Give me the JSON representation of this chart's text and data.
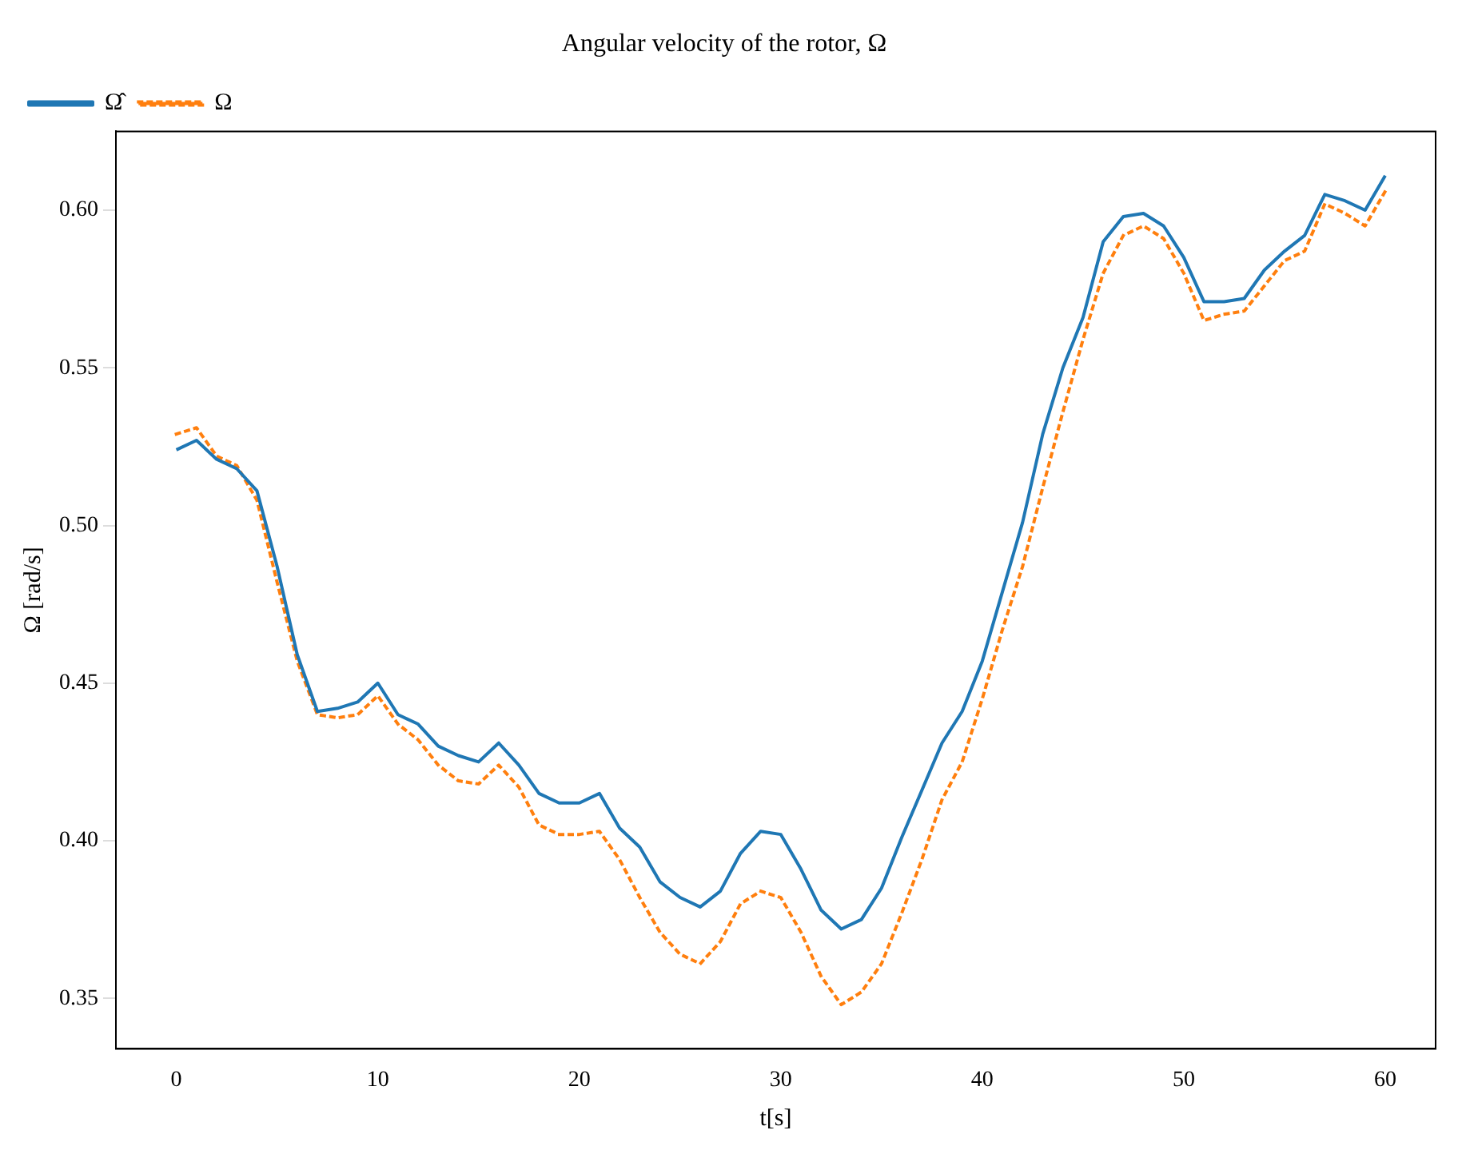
{
  "chart_data": {
    "type": "line",
    "title": "Angular velocity of the rotor, Ω",
    "xlabel": "t[s]",
    "ylabel": "Ω [rad/s]",
    "x": [
      0,
      1,
      2,
      3,
      4,
      5,
      6,
      7,
      8,
      9,
      10,
      11,
      12,
      13,
      14,
      15,
      16,
      17,
      18,
      19,
      20,
      21,
      22,
      23,
      24,
      25,
      26,
      27,
      28,
      29,
      30,
      31,
      32,
      33,
      34,
      35,
      36,
      37,
      38,
      39,
      40,
      41,
      42,
      43,
      44,
      45,
      46,
      47,
      48,
      49,
      50,
      51,
      52,
      53,
      54,
      55,
      56,
      57,
      58,
      59,
      60
    ],
    "series": [
      {
        "name": "Ω̂",
        "color": "#1f77b4",
        "line_style": "solid",
        "values": [
          0.524,
          0.527,
          0.521,
          0.518,
          0.511,
          0.487,
          0.459,
          0.441,
          0.442,
          0.444,
          0.45,
          0.44,
          0.437,
          0.43,
          0.427,
          0.425,
          0.431,
          0.424,
          0.415,
          0.412,
          0.412,
          0.415,
          0.404,
          0.398,
          0.387,
          0.382,
          0.379,
          0.384,
          0.396,
          0.403,
          0.402,
          0.391,
          0.378,
          0.372,
          0.375,
          0.385,
          0.401,
          0.416,
          0.431,
          0.441,
          0.457,
          0.479,
          0.501,
          0.529,
          0.55,
          0.566,
          0.59,
          0.598,
          0.599,
          0.595,
          0.585,
          0.571,
          0.571,
          0.572,
          0.581,
          0.587,
          0.592,
          0.605,
          0.603,
          0.6,
          0.611
        ]
      },
      {
        "name": "Ω",
        "color": "#ff7f0e",
        "line_style": "dotted",
        "values": [
          0.529,
          0.531,
          0.522,
          0.519,
          0.508,
          0.482,
          0.457,
          0.44,
          0.439,
          0.44,
          0.446,
          0.437,
          0.432,
          0.424,
          0.419,
          0.418,
          0.424,
          0.417,
          0.405,
          0.402,
          0.402,
          0.403,
          0.394,
          0.382,
          0.371,
          0.364,
          0.361,
          0.368,
          0.38,
          0.384,
          0.382,
          0.371,
          0.357,
          0.348,
          0.352,
          0.361,
          0.377,
          0.394,
          0.413,
          0.425,
          0.445,
          0.467,
          0.487,
          0.512,
          0.536,
          0.559,
          0.58,
          0.592,
          0.595,
          0.591,
          0.58,
          0.565,
          0.567,
          0.568,
          0.576,
          0.584,
          0.587,
          0.602,
          0.599,
          0.595,
          0.606
        ]
      }
    ],
    "xlim": [
      -3,
      62.5
    ],
    "xticks": [
      0,
      10,
      20,
      30,
      40,
      50,
      60
    ],
    "ylim": [
      0.334,
      0.625
    ],
    "yticks": [
      0.35,
      {
        "value": 0.4,
        "label": "0.40"
      },
      0.45,
      {
        "value": 0.5,
        "label": "0.50"
      },
      0.55,
      {
        "value": 0.6,
        "label": "0.60"
      }
    ],
    "grid": false,
    "legend": "top left"
  }
}
